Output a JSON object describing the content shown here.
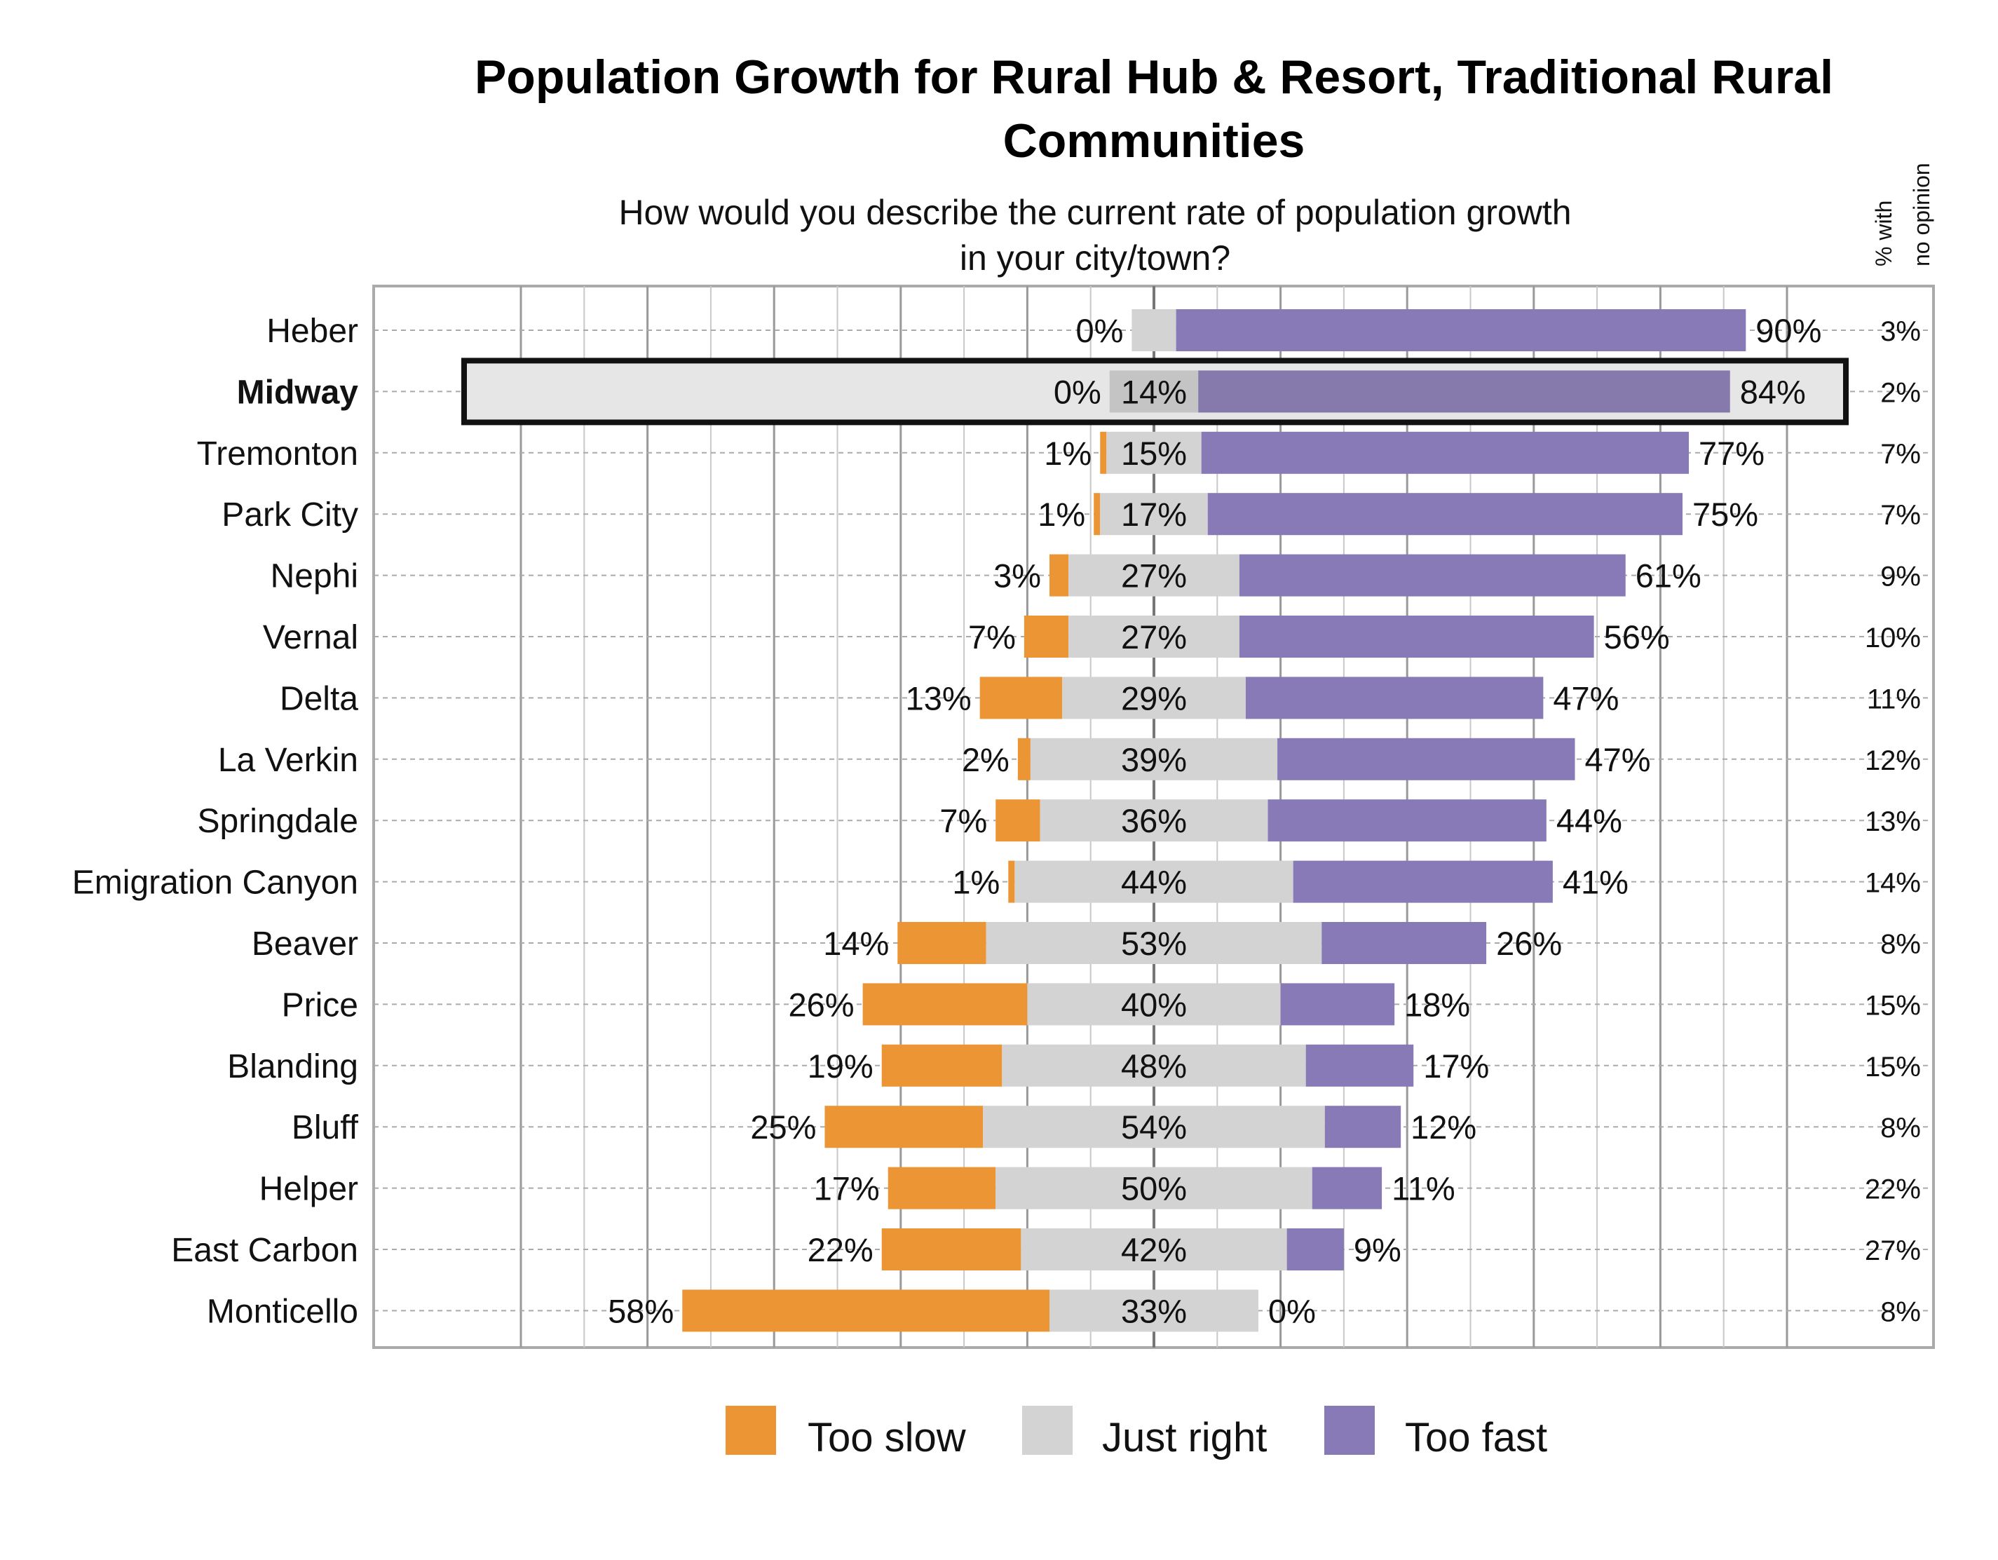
{
  "chart_data": {
    "type": "bar",
    "orientation": "horizontal",
    "stacked": "diverging",
    "title": "Population Growth for Rural Hub & Resort, Traditional Rural Communities",
    "title_lines": [
      "Population Growth for Rural Hub & Resort, Traditional Rural",
      "Communities"
    ],
    "subtitle_lines": [
      "How would you describe the current rate of population growth",
      "in your city/town?"
    ],
    "no_opinion_header": [
      "% with",
      "no opinion"
    ],
    "xlim": [
      -100,
      100
    ],
    "grid": true,
    "legend_position": "bottom",
    "highlighted_category": "Midway",
    "colors": {
      "too_slow": "#ec9535",
      "just_right": "#d3d3d3",
      "too_fast": "#877ab6",
      "highlight_fill": "#e6e6e6",
      "highlight_just_right": "#c4c4c4",
      "highlight_too_fast": "#857aab"
    },
    "series": [
      {
        "name": "Too slow"
      },
      {
        "name": "Just right"
      },
      {
        "name": "Too fast"
      }
    ],
    "categories": [
      "Heber",
      "Midway",
      "Tremonton",
      "Park City",
      "Nephi",
      "Vernal",
      "Delta",
      "La Verkin",
      "Springdale",
      "Emigration Canyon",
      "Beaver",
      "Price",
      "Blanding",
      "Bluff",
      "Helper",
      "East Carbon",
      "Monticello"
    ],
    "too_slow": [
      0,
      0,
      1,
      1,
      3,
      7,
      13,
      2,
      7,
      1,
      14,
      26,
      19,
      25,
      17,
      22,
      58
    ],
    "just_right": [
      7,
      14,
      15,
      17,
      27,
      27,
      29,
      39,
      36,
      44,
      53,
      40,
      48,
      54,
      50,
      42,
      33
    ],
    "too_fast": [
      90,
      84,
      77,
      75,
      61,
      56,
      47,
      47,
      44,
      41,
      26,
      18,
      17,
      12,
      11,
      9,
      0
    ],
    "no_opinion": [
      3,
      2,
      7,
      7,
      9,
      10,
      11,
      12,
      13,
      14,
      8,
      15,
      15,
      8,
      22,
      27,
      8
    ]
  }
}
